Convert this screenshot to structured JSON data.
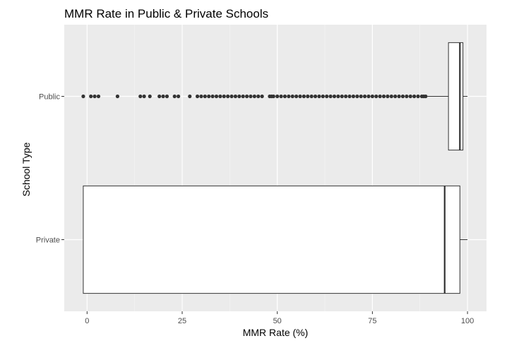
{
  "chart_data": {
    "type": "boxplot",
    "orientation": "horizontal",
    "title": "MMR Rate in Public & Private Schools",
    "xlabel": "MMR Rate (%)",
    "ylabel": "School Type",
    "xlim": [
      -6,
      105
    ],
    "x_ticks": [
      0,
      25,
      50,
      75,
      100
    ],
    "categories": [
      "Private",
      "Public"
    ],
    "grid": true,
    "legend": "none",
    "colors": {
      "panel": "#ebebeb",
      "grid_major": "#ffffff",
      "grid_minor": "#f5f5f5",
      "box_fill": "#ffffff",
      "box_line": "#333333",
      "outlier": "#333333"
    },
    "series": [
      {
        "category": "Public",
        "min": 89.5,
        "q1": 95,
        "median": 98,
        "q3": 98.8,
        "max": 100,
        "outliers": [
          -1,
          1,
          2,
          3,
          8,
          14,
          15,
          16.5,
          19,
          20,
          21,
          23,
          24,
          27,
          29,
          30,
          31,
          32,
          33,
          34,
          35,
          36,
          37,
          38,
          39,
          40,
          41,
          42,
          43,
          44,
          45,
          46,
          48,
          48.5,
          49,
          50,
          51,
          52,
          53,
          54,
          55,
          56,
          57,
          58,
          59,
          60,
          61,
          62,
          63,
          64,
          65,
          66,
          67,
          68,
          69,
          70,
          71,
          72,
          73,
          74,
          75,
          76,
          77,
          78,
          79,
          80,
          81,
          82,
          83,
          84,
          85,
          86,
          87,
          88,
          88.5,
          89
        ]
      },
      {
        "category": "Private",
        "min": -1,
        "q1": -1,
        "median": 94,
        "q3": 98,
        "max": 100,
        "outliers": []
      }
    ]
  }
}
